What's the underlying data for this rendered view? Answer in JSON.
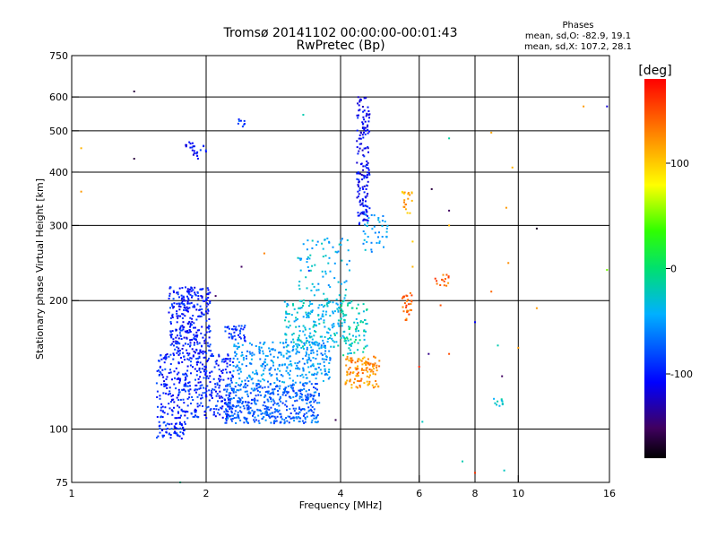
{
  "chart_data": {
    "type": "scatter",
    "title": "Tromsø 20141102 00:00:00-00:01:43",
    "subtitle": "RwPretec (Bp)",
    "xlabel": "Frequency [MHz]",
    "ylabel": "Stationary phase Virtual Height [km]",
    "x_scale": "log",
    "y_scale": "log",
    "xlim": [
      1,
      16
    ],
    "ylim": [
      75,
      750
    ],
    "x_ticks": [
      1,
      2,
      4,
      6,
      8,
      10,
      16
    ],
    "y_ticks": [
      75,
      100,
      200,
      300,
      400,
      500,
      600,
      750
    ],
    "grid": true,
    "stats": {
      "heading": "Phases",
      "line_o": "mean, sd,O: -82.9, 19.1",
      "line_x": "mean, sd,X: 107.2, 28.1"
    },
    "colorbar": {
      "label": "[deg]",
      "range": [
        -180,
        180
      ],
      "ticks": [
        100,
        0,
        -100
      ]
    },
    "clusters": [
      {
        "f": [
          1.55,
          1.8
        ],
        "h": [
          95,
          104
        ],
        "n": 60,
        "phase": -95
      },
      {
        "f": [
          1.55,
          2.3
        ],
        "h": [
          106,
          150
        ],
        "n": 400,
        "phase": -98
      },
      {
        "f": [
          1.65,
          2.05
        ],
        "h": [
          150,
          215
        ],
        "n": 300,
        "phase": -100
      },
      {
        "f": [
          2.2,
          2.45
        ],
        "h": [
          160,
          175
        ],
        "n": 40,
        "phase": -92
      },
      {
        "f": [
          2.2,
          3.6
        ],
        "h": [
          103,
          128
        ],
        "n": 450,
        "phase": -75
      },
      {
        "f": [
          2.3,
          3.8
        ],
        "h": [
          128,
          160
        ],
        "n": 300,
        "phase": -55
      },
      {
        "f": [
          3.0,
          4.1
        ],
        "h": [
          155,
          200
        ],
        "n": 200,
        "phase": -35
      },
      {
        "f": [
          3.2,
          4.2
        ],
        "h": [
          200,
          280
        ],
        "n": 80,
        "phase": -40
      },
      {
        "f": [
          4.1,
          4.9
        ],
        "h": [
          125,
          148
        ],
        "n": 120,
        "phase": 125
      },
      {
        "f": [
          4.0,
          4.6
        ],
        "h": [
          148,
          200
        ],
        "n": 80,
        "phase": -20
      },
      {
        "f": [
          4.35,
          4.65
        ],
        "h": [
          300,
          600
        ],
        "n": 160,
        "phase": -110
      },
      {
        "f": [
          4.5,
          5.1
        ],
        "h": [
          260,
          320
        ],
        "n": 40,
        "phase": -45
      },
      {
        "f": [
          5.5,
          5.8
        ],
        "h": [
          180,
          210
        ],
        "n": 30,
        "phase": 140
      },
      {
        "f": [
          5.5,
          5.8
        ],
        "h": [
          320,
          360
        ],
        "n": 20,
        "phase": 115
      },
      {
        "f": [
          6.5,
          7.0
        ],
        "h": [
          215,
          230
        ],
        "n": 15,
        "phase": 140
      },
      {
        "f": [
          1.8,
          2.0
        ],
        "h": [
          430,
          470
        ],
        "n": 25,
        "phase": -105
      },
      {
        "f": [
          2.35,
          2.45
        ],
        "h": [
          510,
          540
        ],
        "n": 8,
        "phase": -90
      },
      {
        "f": [
          8.8,
          9.3
        ],
        "h": [
          113,
          118
        ],
        "n": 10,
        "phase": -30
      }
    ],
    "scattered_points": [
      {
        "x": 1.38,
        "y": 618,
        "phase": -160
      },
      {
        "x": 1.38,
        "y": 430,
        "phase": -160
      },
      {
        "x": 1.05,
        "y": 455,
        "phase": 110
      },
      {
        "x": 1.05,
        "y": 360,
        "phase": 120
      },
      {
        "x": 1.75,
        "y": 75,
        "phase": -15
      },
      {
        "x": 2.1,
        "y": 205,
        "phase": -150
      },
      {
        "x": 2.4,
        "y": 240,
        "phase": -150
      },
      {
        "x": 2.7,
        "y": 258,
        "phase": 130
      },
      {
        "x": 3.3,
        "y": 545,
        "phase": -20
      },
      {
        "x": 3.4,
        "y": 235,
        "phase": -90
      },
      {
        "x": 3.9,
        "y": 105,
        "phase": -155
      },
      {
        "x": 5.8,
        "y": 240,
        "phase": 110
      },
      {
        "x": 5.8,
        "y": 275,
        "phase": 100
      },
      {
        "x": 6.0,
        "y": 140,
        "phase": 165
      },
      {
        "x": 6.1,
        "y": 104,
        "phase": -25
      },
      {
        "x": 6.3,
        "y": 150,
        "phase": -140
      },
      {
        "x": 6.4,
        "y": 365,
        "phase": -160
      },
      {
        "x": 6.7,
        "y": 195,
        "phase": 150
      },
      {
        "x": 7.0,
        "y": 480,
        "phase": -15
      },
      {
        "x": 7.0,
        "y": 325,
        "phase": -150
      },
      {
        "x": 7.0,
        "y": 300,
        "phase": 110
      },
      {
        "x": 7.0,
        "y": 150,
        "phase": 150
      },
      {
        "x": 7.5,
        "y": 84,
        "phase": -20
      },
      {
        "x": 8.0,
        "y": 178,
        "phase": -110
      },
      {
        "x": 8.0,
        "y": 79,
        "phase": 160
      },
      {
        "x": 8.7,
        "y": 495,
        "phase": 115
      },
      {
        "x": 8.7,
        "y": 210,
        "phase": 140
      },
      {
        "x": 9.0,
        "y": 157,
        "phase": -20
      },
      {
        "x": 9.3,
        "y": 80,
        "phase": -25
      },
      {
        "x": 9.4,
        "y": 330,
        "phase": 120
      },
      {
        "x": 9.5,
        "y": 245,
        "phase": 125
      },
      {
        "x": 9.7,
        "y": 410,
        "phase": 110
      },
      {
        "x": 10.0,
        "y": 155,
        "phase": 120
      },
      {
        "x": 9.2,
        "y": 133,
        "phase": -150
      },
      {
        "x": 11.0,
        "y": 295,
        "phase": -170
      },
      {
        "x": 11.0,
        "y": 192,
        "phase": 120
      },
      {
        "x": 14.0,
        "y": 570,
        "phase": 120
      },
      {
        "x": 15.8,
        "y": 570,
        "phase": -120
      },
      {
        "x": 15.8,
        "y": 236,
        "phase": 50
      }
    ]
  }
}
